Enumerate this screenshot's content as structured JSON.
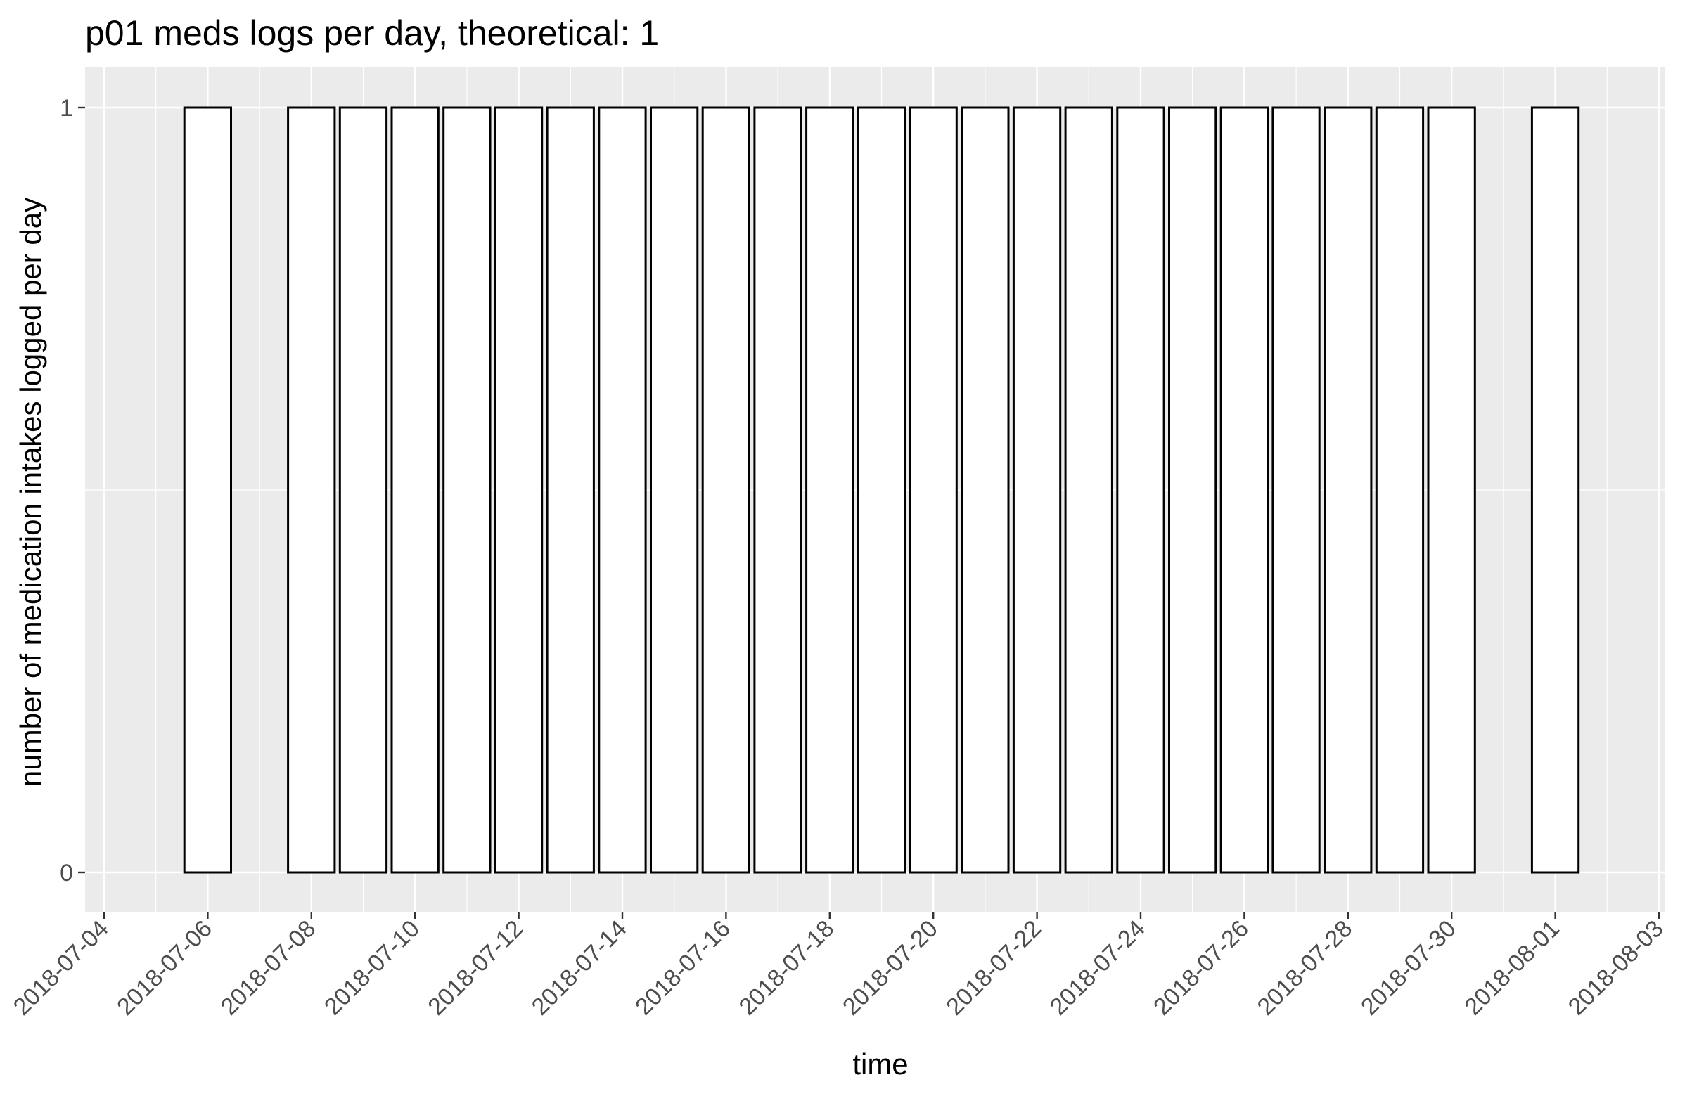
{
  "chart_data": {
    "type": "bar",
    "title": "p01 meds logs per day, theoretical: 1",
    "xlabel": "time",
    "ylabel": "number of medication intakes logged per day",
    "x_axis": {
      "scale": "date",
      "range": [
        "2018-07-03",
        "2018-08-03"
      ],
      "tick_labels": [
        "2018-07-04",
        "2018-07-06",
        "2018-07-08",
        "2018-07-10",
        "2018-07-12",
        "2018-07-14",
        "2018-07-16",
        "2018-07-18",
        "2018-07-20",
        "2018-07-22",
        "2018-07-24",
        "2018-07-26",
        "2018-07-28",
        "2018-07-30",
        "2018-08-01",
        "2018-08-03"
      ]
    },
    "y_axis": {
      "range": [
        0,
        1
      ],
      "tick_labels": [
        "0",
        "1"
      ]
    },
    "grid": true,
    "legend": "none",
    "x": [
      "2018-07-06",
      "2018-07-08",
      "2018-07-09",
      "2018-07-10",
      "2018-07-11",
      "2018-07-12",
      "2018-07-13",
      "2018-07-14",
      "2018-07-15",
      "2018-07-16",
      "2018-07-17",
      "2018-07-18",
      "2018-07-19",
      "2018-07-20",
      "2018-07-21",
      "2018-07-22",
      "2018-07-23",
      "2018-07-24",
      "2018-07-25",
      "2018-07-26",
      "2018-07-27",
      "2018-07-28",
      "2018-07-29",
      "2018-07-30",
      "2018-08-01"
    ],
    "values": [
      1,
      1,
      1,
      1,
      1,
      1,
      1,
      1,
      1,
      1,
      1,
      1,
      1,
      1,
      1,
      1,
      1,
      1,
      1,
      1,
      1,
      1,
      1,
      1,
      1
    ],
    "colors": {
      "panel_background": "#ebebeb",
      "bar_fill": "#ffffff",
      "bar_outline": "#000000"
    }
  }
}
